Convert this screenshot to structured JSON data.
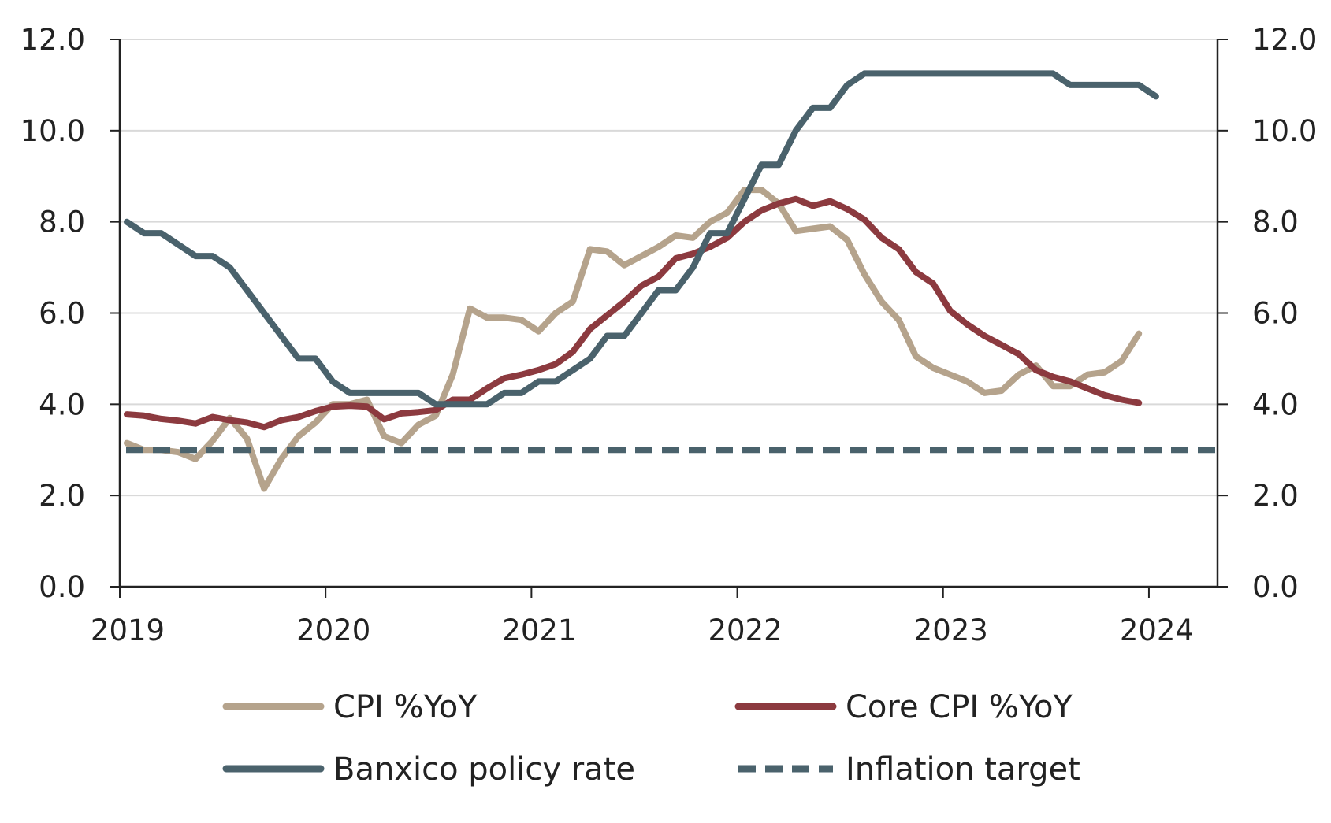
{
  "chart_data": {
    "type": "line",
    "title": "",
    "xlabel": "",
    "ylabel": "",
    "x_ticks": [
      "2019",
      "2020",
      "2021",
      "2022",
      "2023",
      "2024"
    ],
    "y_ticks_left": [
      "0.0",
      "2.0",
      "4.0",
      "6.0",
      "8.0",
      "10.0",
      "12.0"
    ],
    "y_ticks_right": [
      "0.0",
      "2.0",
      "4.0",
      "6.0",
      "8.0",
      "10.0",
      "12.0"
    ],
    "ylim": [
      0,
      12
    ],
    "xlim": [
      "2019-01",
      "2024-05"
    ],
    "grid": "horizontal",
    "legend_position": "bottom",
    "series": [
      {
        "name": "CPI %YoY",
        "color": "#b5a38c",
        "style": "solid",
        "x": [
          "2019-01",
          "2019-02",
          "2019-03",
          "2019-04",
          "2019-05",
          "2019-06",
          "2019-07",
          "2019-08",
          "2019-09",
          "2019-10",
          "2019-11",
          "2019-12",
          "2020-01",
          "2020-02",
          "2020-03",
          "2020-04",
          "2020-05",
          "2020-06",
          "2020-07",
          "2020-08",
          "2020-09",
          "2020-10",
          "2020-11",
          "2020-12",
          "2021-01",
          "2021-02",
          "2021-03",
          "2021-04",
          "2021-05",
          "2021-06",
          "2021-07",
          "2021-08",
          "2021-09",
          "2021-10",
          "2021-11",
          "2021-12",
          "2022-01",
          "2022-02",
          "2022-03",
          "2022-04",
          "2022-05",
          "2022-06",
          "2022-07",
          "2022-08",
          "2022-09",
          "2022-10",
          "2022-11",
          "2022-12",
          "2023-01",
          "2023-02",
          "2023-03",
          "2023-04",
          "2023-05",
          "2023-06",
          "2023-07",
          "2023-08",
          "2023-09",
          "2023-10",
          "2023-11",
          "2023-12"
        ],
        "values": [
          3.15,
          3.0,
          3.0,
          2.95,
          2.8,
          3.2,
          3.7,
          3.25,
          2.15,
          2.8,
          3.3,
          3.6,
          4.0,
          4.0,
          4.1,
          3.3,
          3.15,
          3.55,
          3.75,
          4.65,
          6.1,
          5.9,
          5.9,
          5.85,
          5.6,
          6.0,
          6.25,
          7.4,
          7.35,
          7.05,
          7.25,
          7.45,
          7.7,
          7.65,
          8.0,
          8.2,
          8.7,
          8.7,
          8.4,
          7.8,
          7.85,
          7.9,
          7.6,
          6.85,
          6.25,
          5.85,
          5.05,
          4.8,
          4.65,
          4.5,
          4.25,
          4.3,
          4.65,
          4.85,
          4.4,
          4.4,
          4.65,
          4.7,
          4.95,
          5.55
        ]
      },
      {
        "name": "Core CPI %YoY",
        "color": "#8c3a3f",
        "style": "solid",
        "x": [
          "2019-01",
          "2019-02",
          "2019-03",
          "2019-04",
          "2019-05",
          "2019-06",
          "2019-07",
          "2019-08",
          "2019-09",
          "2019-10",
          "2019-11",
          "2019-12",
          "2020-01",
          "2020-02",
          "2020-03",
          "2020-04",
          "2020-05",
          "2020-06",
          "2020-07",
          "2020-08",
          "2020-09",
          "2020-10",
          "2020-11",
          "2020-12",
          "2021-01",
          "2021-02",
          "2021-03",
          "2021-04",
          "2021-05",
          "2021-06",
          "2021-07",
          "2021-08",
          "2021-09",
          "2021-10",
          "2021-11",
          "2021-12",
          "2022-01",
          "2022-02",
          "2022-03",
          "2022-04",
          "2022-05",
          "2022-06",
          "2022-07",
          "2022-08",
          "2022-09",
          "2022-10",
          "2022-11",
          "2022-12",
          "2023-01",
          "2023-02",
          "2023-03",
          "2023-04",
          "2023-05",
          "2023-06",
          "2023-07",
          "2023-08",
          "2023-09",
          "2023-10",
          "2023-11",
          "2023-12"
        ],
        "values": [
          3.78,
          3.75,
          3.68,
          3.64,
          3.58,
          3.72,
          3.65,
          3.6,
          3.5,
          3.65,
          3.72,
          3.85,
          3.95,
          3.97,
          3.95,
          3.67,
          3.8,
          3.83,
          3.87,
          4.1,
          4.1,
          4.35,
          4.57,
          4.65,
          4.75,
          4.88,
          5.15,
          5.65,
          5.95,
          6.25,
          6.6,
          6.8,
          7.2,
          7.3,
          7.45,
          7.65,
          8.0,
          8.25,
          8.4,
          8.5,
          8.35,
          8.45,
          8.28,
          8.05,
          7.65,
          7.4,
          6.9,
          6.65,
          6.05,
          5.75,
          5.5,
          5.3,
          5.1,
          4.75,
          4.6,
          4.5,
          4.35,
          4.2,
          4.1,
          4.03
        ]
      },
      {
        "name": "Banxico policy rate",
        "color": "#4a626c",
        "style": "solid",
        "x": [
          "2019-01",
          "2019-02",
          "2019-03",
          "2019-04",
          "2019-05",
          "2019-06",
          "2019-07",
          "2019-08",
          "2019-09",
          "2019-10",
          "2019-11",
          "2019-12",
          "2020-01",
          "2020-02",
          "2020-03",
          "2020-04",
          "2020-05",
          "2020-06",
          "2020-07",
          "2020-08",
          "2020-09",
          "2020-10",
          "2020-11",
          "2020-12",
          "2021-01",
          "2021-02",
          "2021-03",
          "2021-04",
          "2021-05",
          "2021-06",
          "2021-07",
          "2021-08",
          "2021-09",
          "2021-10",
          "2021-11",
          "2021-12",
          "2022-01",
          "2022-02",
          "2022-03",
          "2022-04",
          "2022-05",
          "2022-06",
          "2022-07",
          "2022-08",
          "2022-09",
          "2022-10",
          "2022-11",
          "2022-12",
          "2023-01",
          "2023-02",
          "2023-03",
          "2023-04",
          "2023-05",
          "2023-06",
          "2023-07",
          "2023-08",
          "2023-09",
          "2023-10",
          "2023-11",
          "2023-12",
          "2024-01"
        ],
        "values": [
          8.0,
          7.75,
          7.75,
          7.5,
          7.25,
          7.25,
          7.0,
          6.5,
          6.0,
          5.5,
          5.0,
          5.0,
          4.5,
          4.25,
          4.25,
          4.25,
          4.25,
          4.25,
          4.0,
          4.0,
          4.0,
          4.0,
          4.25,
          4.25,
          4.5,
          4.5,
          4.75,
          5.0,
          5.5,
          5.5,
          6.0,
          6.5,
          6.5,
          7.0,
          7.75,
          7.75,
          8.5,
          9.25,
          9.25,
          10.0,
          10.5,
          10.5,
          11.0,
          11.25,
          11.25,
          11.25,
          11.25,
          11.25,
          11.25,
          11.25,
          11.25,
          11.25,
          11.25,
          11.25,
          11.25,
          11.0,
          11.0,
          11.0,
          11.0,
          11.0,
          10.75
        ]
      },
      {
        "name": "Inflation target",
        "color": "#4a626c",
        "style": "dashed",
        "x": [
          "2019-01",
          "2024-05"
        ],
        "values": [
          3.0,
          3.0
        ]
      }
    ]
  }
}
